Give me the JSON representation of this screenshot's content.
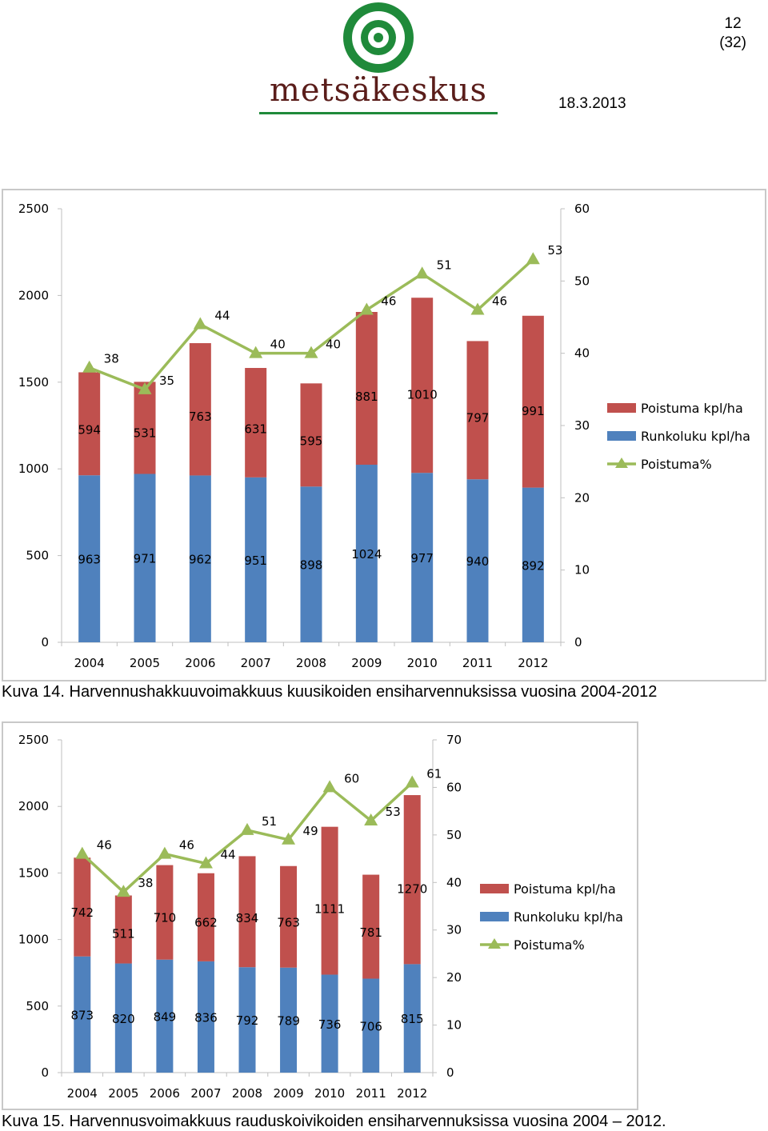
{
  "header": {
    "page_number": "12",
    "page_total": "(32)",
    "logo_text": "metsäkeskus",
    "date": "18.3.2013"
  },
  "colors": {
    "removal": "#C0504D",
    "stem": "#4F81BD",
    "line": "#9BBB59",
    "logo_green": "#1f8a3a",
    "logo_text": "#5a1d1a"
  },
  "figures": [
    {
      "caption": "Kuva 14. Harvennushakkuuvoimakkuus kuusikoiden ensiharvennuksissa vuosina 2004-2012"
    },
    {
      "caption": "Kuva 15. Harvennusvoimakkuus rauduskoivikoiden ensiharvennuksissa vuosina 2004 – 2012."
    }
  ],
  "chart_data": [
    {
      "type": "bar",
      "stacked": true,
      "title": "",
      "categories": [
        "2004",
        "2005",
        "2006",
        "2007",
        "2008",
        "2009",
        "2010",
        "2011",
        "2012"
      ],
      "series": [
        {
          "name": "Runkoluku kpl/ha",
          "axis": "left",
          "values": [
            963,
            971,
            962,
            951,
            898,
            1024,
            977,
            940,
            892
          ]
        },
        {
          "name": "Poistuma kpl/ha",
          "axis": "left",
          "values": [
            594,
            531,
            763,
            631,
            595,
            881,
            1010,
            797,
            991
          ]
        },
        {
          "name": "Poistuma%",
          "type": "line",
          "axis": "right",
          "values": [
            38,
            35,
            44,
            40,
            40,
            46,
            51,
            46,
            53
          ]
        }
      ],
      "legend_order": [
        "Poistuma kpl/ha",
        "Runkoluku kpl/ha",
        "Poistuma%"
      ],
      "ylim": [
        0,
        2500
      ],
      "yticks": [
        "0",
        "500",
        "1000",
        "1500",
        "2000",
        "2500"
      ],
      "y2lim": [
        0,
        60
      ],
      "y2ticks": [
        "0",
        "10",
        "20",
        "30",
        "40",
        "50",
        "60"
      ],
      "legend_position": "right"
    },
    {
      "type": "bar",
      "stacked": true,
      "title": "",
      "categories": [
        "2004",
        "2005",
        "2006",
        "2007",
        "2008",
        "2009",
        "2010",
        "2011",
        "2012"
      ],
      "series": [
        {
          "name": "Runkoluku kpl/ha",
          "axis": "left",
          "values": [
            873,
            820,
            849,
            836,
            792,
            789,
            736,
            706,
            815
          ]
        },
        {
          "name": "Poistuma kpl/ha",
          "axis": "left",
          "values": [
            742,
            511,
            710,
            662,
            834,
            763,
            1111,
            781,
            1270
          ]
        },
        {
          "name": "Poistuma%",
          "type": "line",
          "axis": "right",
          "values": [
            46,
            38,
            46,
            44,
            51,
            49,
            60,
            53,
            61
          ]
        }
      ],
      "legend_order": [
        "Poistuma kpl/ha",
        "Runkoluku kpl/ha",
        "Poistuma%"
      ],
      "ylim": [
        0,
        2500
      ],
      "yticks": [
        "0",
        "500",
        "1000",
        "1500",
        "2000",
        "2500"
      ],
      "y2lim": [
        0,
        70
      ],
      "y2ticks": [
        "0",
        "10",
        "20",
        "30",
        "40",
        "50",
        "60",
        "70"
      ],
      "legend_position": "right"
    }
  ]
}
